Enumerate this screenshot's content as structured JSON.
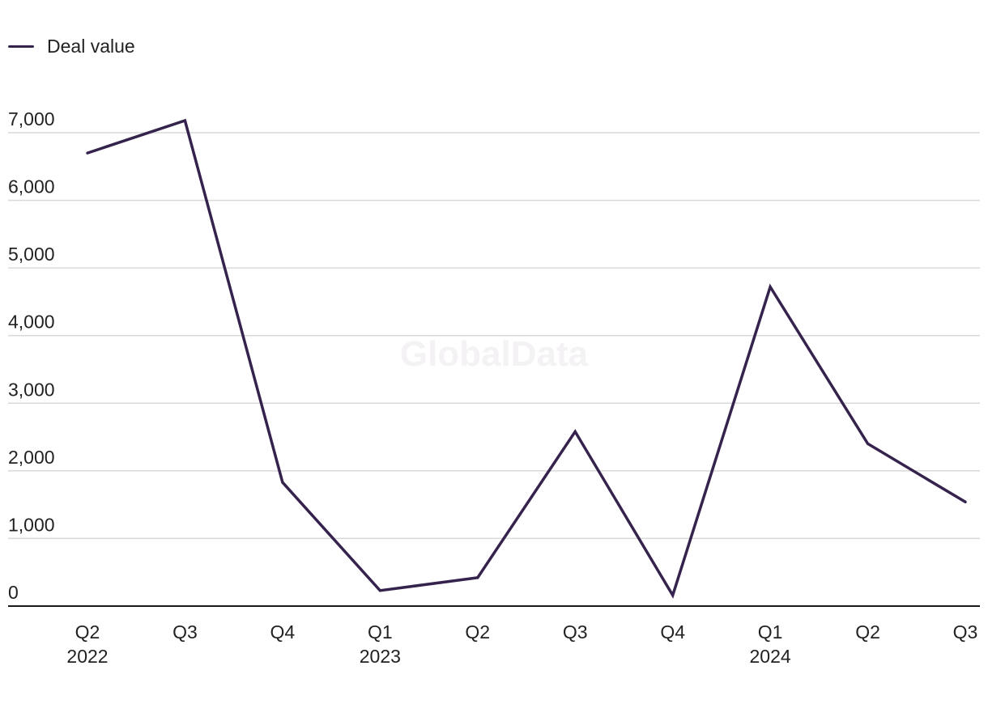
{
  "chart_data": {
    "type": "line",
    "categories": [
      "Q2",
      "Q3",
      "Q4",
      "Q1",
      "Q2",
      "Q3",
      "Q4",
      "Q1",
      "Q2",
      "Q3"
    ],
    "category_years": [
      "2022",
      "",
      "",
      "2023",
      "",
      "",
      "",
      "2024",
      "",
      ""
    ],
    "series": [
      {
        "name": "Deal value",
        "values": [
          6700,
          7180,
          1830,
          230,
          420,
          2580,
          160,
          4720,
          2400,
          1540
        ]
      }
    ],
    "yticks": [
      "0",
      "1,000",
      "2,000",
      "3,000",
      "4,000",
      "5,000",
      "6,000",
      "7,000"
    ],
    "ylim": [
      0,
      7000
    ],
    "grid": true,
    "legend_position": "top-left",
    "watermark": "GlobalData",
    "colors": {
      "line": "#35234d",
      "grid": "#d9d9d9",
      "axis": "#1a1a1a"
    }
  }
}
